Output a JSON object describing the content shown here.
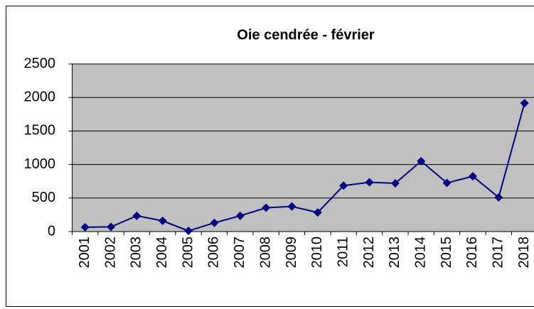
{
  "chart_data": {
    "type": "line",
    "title": "Oie cendrée - février",
    "categories": [
      "2001",
      "2002",
      "2003",
      "2004",
      "2005",
      "2006",
      "2007",
      "2008",
      "2009",
      "2010",
      "2011",
      "2012",
      "2013",
      "2014",
      "2015",
      "2016",
      "2017",
      "2018"
    ],
    "series": [
      {
        "name": "Oie cendrée",
        "color": "#000080",
        "values": [
          65,
          70,
          235,
          160,
          10,
          130,
          235,
          355,
          375,
          285,
          685,
          735,
          720,
          1050,
          725,
          825,
          510,
          1915
        ]
      }
    ],
    "ylim": [
      0,
      2500
    ],
    "yticks": [
      0,
      500,
      1000,
      1500,
      2000,
      2500
    ],
    "grid": true
  }
}
